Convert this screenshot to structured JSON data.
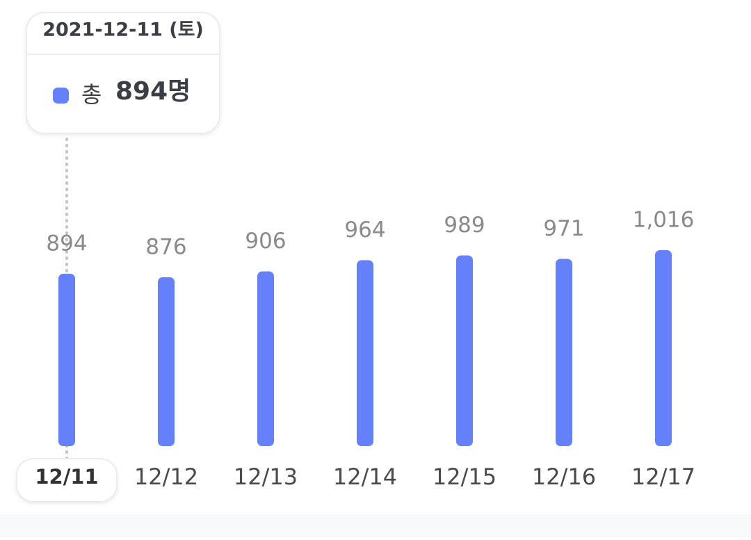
{
  "chart_data": {
    "type": "bar",
    "categories": [
      "12/11",
      "12/12",
      "12/13",
      "12/14",
      "12/15",
      "12/16",
      "12/17"
    ],
    "values": [
      894,
      876,
      906,
      964,
      989,
      971,
      1016
    ],
    "value_labels": [
      "894",
      "876",
      "906",
      "964",
      "989",
      "971",
      "1,016"
    ],
    "color": "#6580fb",
    "selected": 0
  },
  "tooltip": {
    "date": "2021-12-11 (토)",
    "label": "총",
    "value": "894명"
  }
}
